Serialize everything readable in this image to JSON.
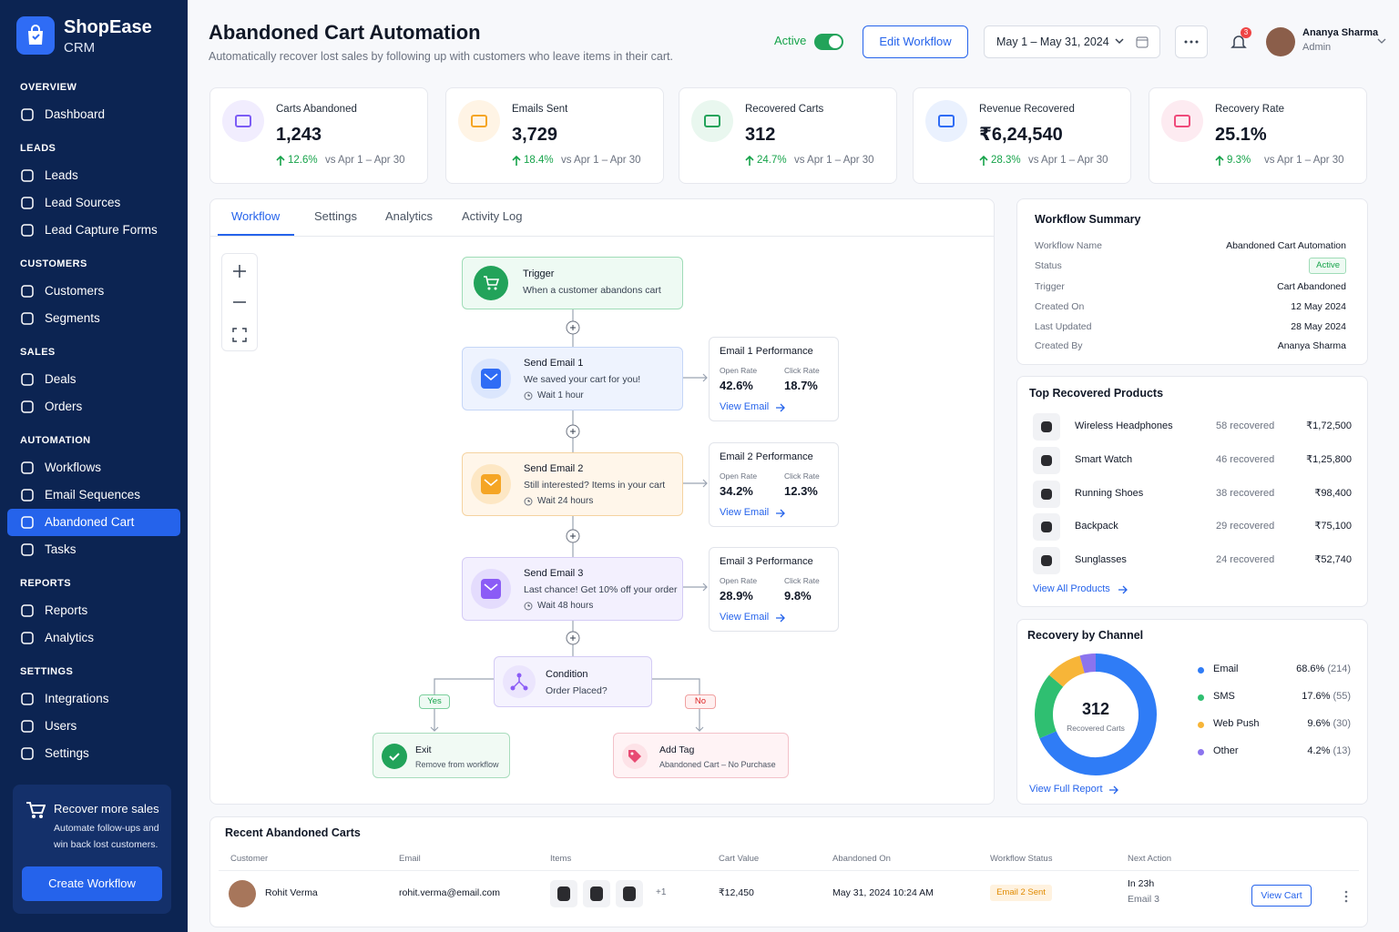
{
  "brand": {
    "name": "ShopEase",
    "sub": "CRM"
  },
  "sidebar": {
    "sections": [
      {
        "title": "OVERVIEW",
        "items": [
          {
            "label": "Dashboard"
          }
        ]
      },
      {
        "title": "LEADS",
        "items": [
          {
            "label": "Leads"
          },
          {
            "label": "Lead Sources"
          },
          {
            "label": "Lead Capture Forms"
          }
        ]
      },
      {
        "title": "CUSTOMERS",
        "items": [
          {
            "label": "Customers"
          },
          {
            "label": "Segments"
          }
        ]
      },
      {
        "title": "SALES",
        "items": [
          {
            "label": "Deals"
          },
          {
            "label": "Orders"
          }
        ]
      },
      {
        "title": "AUTOMATION",
        "items": [
          {
            "label": "Workflows"
          },
          {
            "label": "Email Sequences"
          },
          {
            "label": "Abandoned Cart",
            "active": true
          },
          {
            "label": "Tasks"
          }
        ]
      },
      {
        "title": "REPORTS",
        "items": [
          {
            "label": "Reports"
          },
          {
            "label": "Analytics"
          }
        ]
      },
      {
        "title": "SETTINGS",
        "items": [
          {
            "label": "Integrations"
          },
          {
            "label": "Users"
          },
          {
            "label": "Settings"
          }
        ]
      }
    ],
    "promo": {
      "title": "Recover more sales",
      "text": "Automate follow-ups and win back lost customers.",
      "button": "Create Workflow"
    }
  },
  "header": {
    "title": "Abandoned Cart Automation",
    "subtitle": "Automatically recover lost sales by following up with customers who leave items in their cart.",
    "status": "Active",
    "edit": "Edit Workflow",
    "date_range": "May 1 – May 31, 2024",
    "notifications": "3",
    "user": {
      "name": "Ananya Sharma",
      "role": "Admin"
    }
  },
  "kpis": [
    {
      "label": "Carts Abandoned",
      "value": "1,243",
      "change": "12.6%",
      "compare": "vs Apr 1 – Apr 30"
    },
    {
      "label": "Emails Sent",
      "value": "3,729",
      "change": "18.4%",
      "compare": "vs Apr 1 – Apr 30"
    },
    {
      "label": "Recovered Carts",
      "value": "312",
      "change": "24.7%",
      "compare": "vs Apr 1 – Apr 30"
    },
    {
      "label": "Revenue Recovered",
      "value": "₹6,24,540",
      "change": "28.3%",
      "compare": "vs Apr 1 – Apr 30"
    },
    {
      "label": "Recovery Rate",
      "value": "25.1%",
      "change": "9.3%",
      "compare": "vs Apr 1 – Apr 30"
    }
  ],
  "tabs": [
    "Workflow",
    "Settings",
    "Analytics",
    "Activity Log"
  ],
  "workflow": {
    "trigger": {
      "title": "Trigger",
      "text": "When a customer abandons cart"
    },
    "steps": [
      {
        "title": "Send Email 1",
        "text": "We saved your cart for you!",
        "wait": "Wait 1 hour",
        "perf": {
          "title": "Email 1 Performance",
          "open_label": "Open Rate",
          "open": "42.6%",
          "click_label": "Click Rate",
          "click": "18.7%",
          "link": "View Email"
        }
      },
      {
        "title": "Send Email 2",
        "text": "Still interested? Items in your cart",
        "wait": "Wait 24 hours",
        "perf": {
          "title": "Email 2 Performance",
          "open_label": "Open Rate",
          "open": "34.2%",
          "click_label": "Click Rate",
          "click": "12.3%",
          "link": "View Email"
        }
      },
      {
        "title": "Send Email 3",
        "text": "Last chance! Get 10% off your order",
        "wait": "Wait 48 hours",
        "perf": {
          "title": "Email 3 Performance",
          "open_label": "Open Rate",
          "open": "28.9%",
          "click_label": "Click Rate",
          "click": "9.8%",
          "link": "View Email"
        }
      }
    ],
    "condition": {
      "title": "Condition",
      "text": "Order Placed?",
      "yes": "Yes",
      "no": "No"
    },
    "exit": {
      "title": "Exit",
      "text": "Remove from workflow"
    },
    "tag": {
      "title": "Add Tag",
      "text": "Abandoned Cart – No Purchase"
    }
  },
  "summary": {
    "title": "Workflow Summary",
    "rows": [
      [
        "Workflow Name",
        "Abandoned Cart Automation"
      ],
      [
        "Status",
        "Active"
      ],
      [
        "Trigger",
        "Cart Abandoned"
      ],
      [
        "Created On",
        "12 May 2024"
      ],
      [
        "Last Updated",
        "28 May 2024"
      ],
      [
        "Created By",
        "Ananya Sharma"
      ]
    ]
  },
  "products": {
    "title": "Top Recovered Products",
    "rows": [
      [
        "Wireless Headphones",
        "58 recovered",
        "₹1,72,500"
      ],
      [
        "Smart Watch",
        "46 recovered",
        "₹1,25,800"
      ],
      [
        "Running Shoes",
        "38 recovered",
        "₹98,400"
      ],
      [
        "Backpack",
        "29 recovered",
        "₹75,100"
      ],
      [
        "Sunglasses",
        "24 recovered",
        "₹52,740"
      ]
    ],
    "link": "View All Products"
  },
  "chart_data": {
    "type": "pie",
    "title": "Recovery by Channel",
    "center_value": "312",
    "center_label": "Recovered Carts",
    "categories": [
      "Email",
      "SMS",
      "Web Push",
      "Other"
    ],
    "values": [
      68.6,
      17.6,
      9.6,
      4.2
    ],
    "value_labels": [
      "68.6%",
      "17.6%",
      "9.6%",
      "4.2%"
    ],
    "counts": [
      "(214)",
      "(55)",
      "(30)",
      "(13)"
    ],
    "colors": [
      "#2f7cf6",
      "#2fbf71",
      "#f7b538",
      "#8b74ee"
    ],
    "link": "View Full Report"
  },
  "recent": {
    "title": "Recent Abandoned Carts",
    "columns": [
      "Customer",
      "Email",
      "Items",
      "Cart Value",
      "Abandoned On",
      "Workflow Status",
      "Next Action"
    ],
    "rows": [
      {
        "customer": "Rohit Verma",
        "email": "rohit.verma@email.com",
        "more": "+1",
        "value": "₹12,450",
        "date": "May 31, 2024 10:24 AM",
        "status": "Email 2 Sent",
        "next": "In 23h",
        "next_sub": "Email 3",
        "action": "View Cart"
      }
    ]
  }
}
